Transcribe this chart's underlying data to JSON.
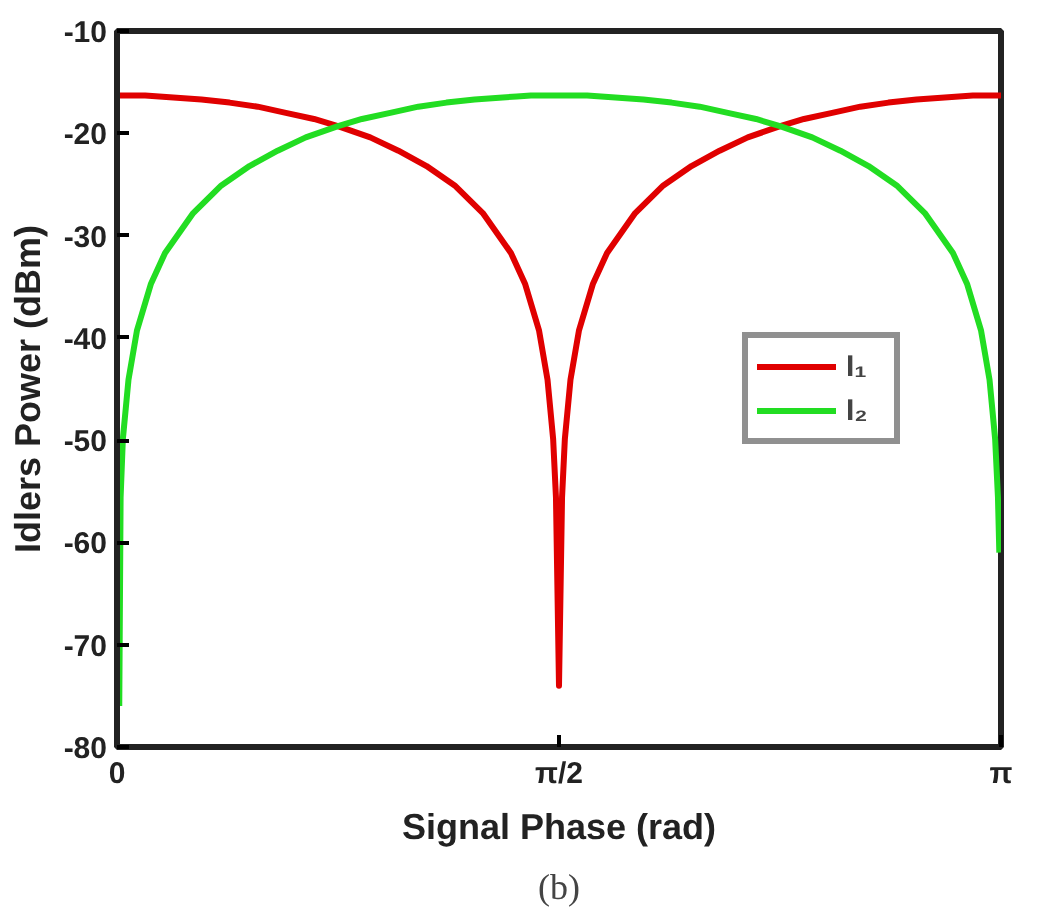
{
  "chart_data": {
    "type": "line",
    "xlabel": "Signal Phase (rad)",
    "ylabel": "Idlers Power (dBm)",
    "annotations": [
      "(b)"
    ],
    "xlim": [
      0,
      3.1416
    ],
    "xticks": [
      0,
      {
        "value": 1.5708,
        "label": "π/2"
      },
      {
        "value": 3.1416,
        "label": "π"
      }
    ],
    "ylim": [
      -80,
      -10
    ],
    "yticks": [
      -80,
      -70,
      -60,
      -50,
      -40,
      -30,
      -20,
      -10
    ],
    "grid": false,
    "legend": "right",
    "line_style": "solid",
    "marker": "none",
    "series": [
      {
        "name": "I₁",
        "color": "#e00000",
        "x": [
          0,
          0.05,
          0.1,
          0.15,
          0.2,
          0.3,
          0.4,
          0.5,
          0.6,
          0.7,
          0.785,
          0.9,
          1.0,
          1.1,
          1.2,
          1.3,
          1.4,
          1.45,
          1.5,
          1.53,
          1.55,
          1.56,
          1.5708,
          1.5816,
          1.5916,
          1.6116,
          1.6416,
          1.6916,
          1.7416,
          1.8416,
          1.9416,
          2.0416,
          2.1416,
          2.2416,
          2.3566,
          2.4416,
          2.5416,
          2.6416,
          2.7416,
          2.8416,
          2.9416,
          2.9916,
          3.0416,
          3.0916,
          3.1416
        ],
        "values": [
          -16.3,
          -16.3,
          -16.3,
          -16.4,
          -16.5,
          -16.7,
          -17.0,
          -17.4,
          -18.0,
          -18.6,
          -19.3,
          -20.4,
          -21.7,
          -23.2,
          -25.1,
          -27.8,
          -31.7,
          -34.7,
          -39.3,
          -44.1,
          -49.9,
          -55.6,
          -74,
          -55.6,
          -49.9,
          -44.1,
          -39.3,
          -34.7,
          -31.7,
          -27.8,
          -25.1,
          -23.2,
          -21.7,
          -20.4,
          -19.3,
          -18.6,
          -18.0,
          -17.4,
          -17.0,
          -16.7,
          -16.5,
          -16.4,
          -16.3,
          -16.3,
          -16.3
        ]
      },
      {
        "name": "I₂",
        "color": "#22dd22",
        "x": [
          0.008,
          0.0128,
          0.0208,
          0.0408,
          0.0708,
          0.1208,
          0.1708,
          0.2708,
          0.3708,
          0.4708,
          0.5708,
          0.6708,
          0.7854,
          0.8708,
          0.9708,
          1.0708,
          1.1708,
          1.2708,
          1.3708,
          1.4208,
          1.4708,
          1.5708,
          1.6708,
          1.7208,
          1.7708,
          1.8708,
          1.9708,
          2.0708,
          2.1708,
          2.2708,
          2.3562,
          2.4708,
          2.5708,
          2.6708,
          2.7708,
          2.8708,
          2.9708,
          3.0208,
          3.0708,
          3.1008,
          3.1208,
          3.1308,
          3.1356
        ],
        "values": [
          -76,
          -55.6,
          -49.9,
          -44.1,
          -39.3,
          -34.7,
          -31.7,
          -27.8,
          -25.1,
          -23.2,
          -21.7,
          -20.4,
          -19.3,
          -18.6,
          -18.0,
          -17.4,
          -17.0,
          -16.7,
          -16.5,
          -16.4,
          -16.3,
          -16.3,
          -16.3,
          -16.4,
          -16.5,
          -16.7,
          -17.0,
          -17.4,
          -18.0,
          -18.6,
          -19.3,
          -20.4,
          -21.7,
          -23.2,
          -25.1,
          -27.8,
          -31.7,
          -34.7,
          -39.3,
          -44.1,
          -49.9,
          -55.6,
          -61
        ]
      }
    ]
  }
}
